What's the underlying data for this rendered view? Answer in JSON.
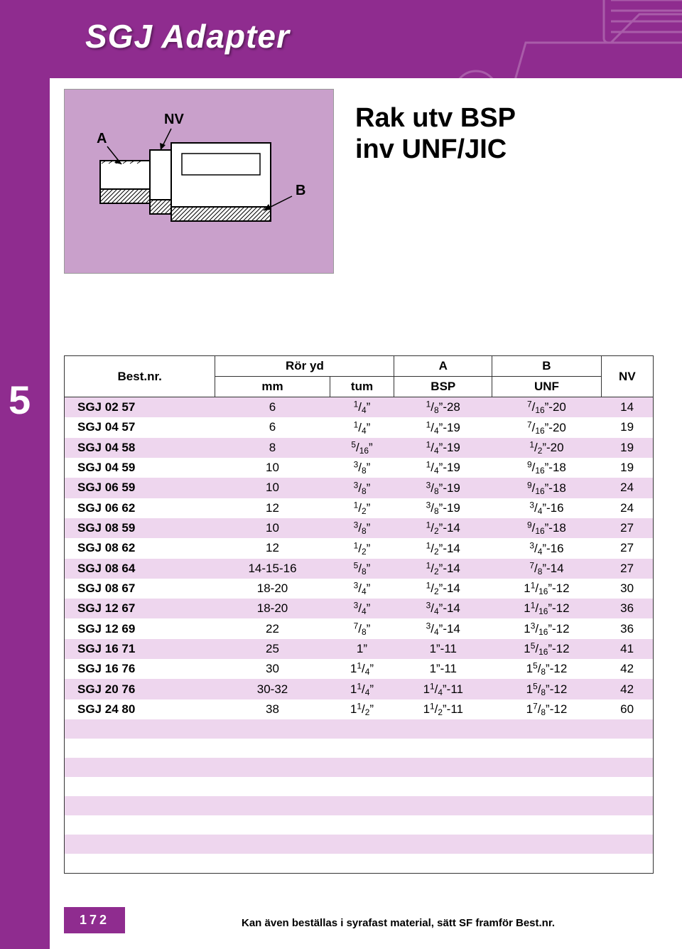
{
  "header": {
    "title": "SGJ Adapter",
    "subtitle_line1": "Rak utv BSP",
    "subtitle_line2": "inv UNF/JIC"
  },
  "section_number": "5",
  "diagram": {
    "label_A": "A",
    "label_NV": "NV",
    "label_B": "B"
  },
  "table": {
    "head": {
      "col1": "Best.nr.",
      "col2a": "Rör yd",
      "col2_mm": "mm",
      "col2_tum": "tum",
      "col3a": "A",
      "col3b": "BSP",
      "col4a": "B",
      "col4b": "UNF",
      "col5": "NV"
    },
    "rows": [
      {
        "nr": "SGJ 02 57",
        "mm": "6",
        "tum": {
          "w": "",
          "n": "1",
          "d": "4",
          "s": "”"
        },
        "bsp": {
          "w": "",
          "n": "1",
          "d": "8",
          "s": "”-28"
        },
        "unf": {
          "w": "",
          "n": "7",
          "d": "16",
          "s": "”-20"
        },
        "nv": "14"
      },
      {
        "nr": "SGJ 04 57",
        "mm": "6",
        "tum": {
          "w": "",
          "n": "1",
          "d": "4",
          "s": "”"
        },
        "bsp": {
          "w": "",
          "n": "1",
          "d": "4",
          "s": "”-19"
        },
        "unf": {
          "w": "",
          "n": "7",
          "d": "16",
          "s": "”-20"
        },
        "nv": "19"
      },
      {
        "nr": "SGJ 04 58",
        "mm": "8",
        "tum": {
          "w": "",
          "n": "5",
          "d": "16",
          "s": "”"
        },
        "bsp": {
          "w": "",
          "n": "1",
          "d": "4",
          "s": "”-19"
        },
        "unf": {
          "w": "",
          "n": "1",
          "d": "2",
          "s": "”-20"
        },
        "nv": "19"
      },
      {
        "nr": "SGJ 04 59",
        "mm": "10",
        "tum": {
          "w": "",
          "n": "3",
          "d": "8",
          "s": "”"
        },
        "bsp": {
          "w": "",
          "n": "1",
          "d": "4",
          "s": "”-19"
        },
        "unf": {
          "w": "",
          "n": "9",
          "d": "16",
          "s": "”-18"
        },
        "nv": "19"
      },
      {
        "nr": "SGJ 06 59",
        "mm": "10",
        "tum": {
          "w": "",
          "n": "3",
          "d": "8",
          "s": "”"
        },
        "bsp": {
          "w": "",
          "n": "3",
          "d": "8",
          "s": "”-19"
        },
        "unf": {
          "w": "",
          "n": "9",
          "d": "16",
          "s": "”-18"
        },
        "nv": "24"
      },
      {
        "nr": "SGJ 06 62",
        "mm": "12",
        "tum": {
          "w": "",
          "n": "1",
          "d": "2",
          "s": "”"
        },
        "bsp": {
          "w": "",
          "n": "3",
          "d": "8",
          "s": "”-19"
        },
        "unf": {
          "w": "",
          "n": "3",
          "d": "4",
          "s": "”-16"
        },
        "nv": "24"
      },
      {
        "nr": "SGJ 08 59",
        "mm": "10",
        "tum": {
          "w": "",
          "n": "3",
          "d": "8",
          "s": "”"
        },
        "bsp": {
          "w": "",
          "n": "1",
          "d": "2",
          "s": "”-14"
        },
        "unf": {
          "w": "",
          "n": "9",
          "d": "16",
          "s": "”-18"
        },
        "nv": "27"
      },
      {
        "nr": "SGJ 08 62",
        "mm": "12",
        "tum": {
          "w": "",
          "n": "1",
          "d": "2",
          "s": "”"
        },
        "bsp": {
          "w": "",
          "n": "1",
          "d": "2",
          "s": "”-14"
        },
        "unf": {
          "w": "",
          "n": "3",
          "d": "4",
          "s": "”-16"
        },
        "nv": "27"
      },
      {
        "nr": "SGJ 08 64",
        "mm": "14-15-16",
        "tum": {
          "w": "",
          "n": "5",
          "d": "8",
          "s": "”"
        },
        "bsp": {
          "w": "",
          "n": "1",
          "d": "2",
          "s": "”-14"
        },
        "unf": {
          "w": "",
          "n": "7",
          "d": "8",
          "s": "”-14"
        },
        "nv": "27"
      },
      {
        "nr": "SGJ 08 67",
        "mm": "18-20",
        "tum": {
          "w": "",
          "n": "3",
          "d": "4",
          "s": "”"
        },
        "bsp": {
          "w": "",
          "n": "1",
          "d": "2",
          "s": "”-14"
        },
        "unf": {
          "w": "1",
          "n": "1",
          "d": "16",
          "s": "”-12"
        },
        "nv": "30"
      },
      {
        "nr": "SGJ 12 67",
        "mm": "18-20",
        "tum": {
          "w": "",
          "n": "3",
          "d": "4",
          "s": "”"
        },
        "bsp": {
          "w": "",
          "n": "3",
          "d": "4",
          "s": "”-14"
        },
        "unf": {
          "w": "1",
          "n": "1",
          "d": "16",
          "s": "”-12"
        },
        "nv": "36"
      },
      {
        "nr": "SGJ 12 69",
        "mm": "22",
        "tum": {
          "w": "",
          "n": "7",
          "d": "8",
          "s": "”"
        },
        "bsp": {
          "w": "",
          "n": "3",
          "d": "4",
          "s": "”-14"
        },
        "unf": {
          "w": "1",
          "n": "3",
          "d": "16",
          "s": "”-12"
        },
        "nv": "36"
      },
      {
        "nr": "SGJ 16 71",
        "mm": "25",
        "tum": {
          "w": "1",
          "n": "",
          "d": "",
          "s": "”"
        },
        "bsp": {
          "w": "1",
          "n": "",
          "d": "",
          "s": "”-11"
        },
        "unf": {
          "w": "1",
          "n": "5",
          "d": "16",
          "s": "”-12"
        },
        "nv": "41"
      },
      {
        "nr": "SGJ 16 76",
        "mm": "30",
        "tum": {
          "w": "1",
          "n": "1",
          "d": "4",
          "s": "”"
        },
        "bsp": {
          "w": "1",
          "n": "",
          "d": "",
          "s": "”-11"
        },
        "unf": {
          "w": "1",
          "n": "5",
          "d": "8",
          "s": "”-12"
        },
        "nv": "42"
      },
      {
        "nr": "SGJ 20 76",
        "mm": "30-32",
        "tum": {
          "w": "1",
          "n": "1",
          "d": "4",
          "s": "”"
        },
        "bsp": {
          "w": "1",
          "n": "1",
          "d": "4",
          "s": "”-11"
        },
        "unf": {
          "w": "1",
          "n": "5",
          "d": "8",
          "s": "”-12"
        },
        "nv": "42"
      },
      {
        "nr": "SGJ 24 80",
        "mm": "38",
        "tum": {
          "w": "1",
          "n": "1",
          "d": "2",
          "s": "”"
        },
        "bsp": {
          "w": "1",
          "n": "1",
          "d": "2",
          "s": "”-11"
        },
        "unf": {
          "w": "1",
          "n": "7",
          "d": "8",
          "s": "”-12"
        },
        "nv": "60"
      }
    ],
    "empty_rows": 8,
    "stripe_colors": {
      "alt": "#eed6ee",
      "plain": "#ffffff"
    }
  },
  "footer": {
    "page": "172",
    "note": "Kan även beställas i syrafast material, sätt SF framför Best.nr."
  },
  "colors": {
    "brand": "#8f2c8f",
    "brand_light": "#c9a0cb",
    "text": "#000000"
  }
}
